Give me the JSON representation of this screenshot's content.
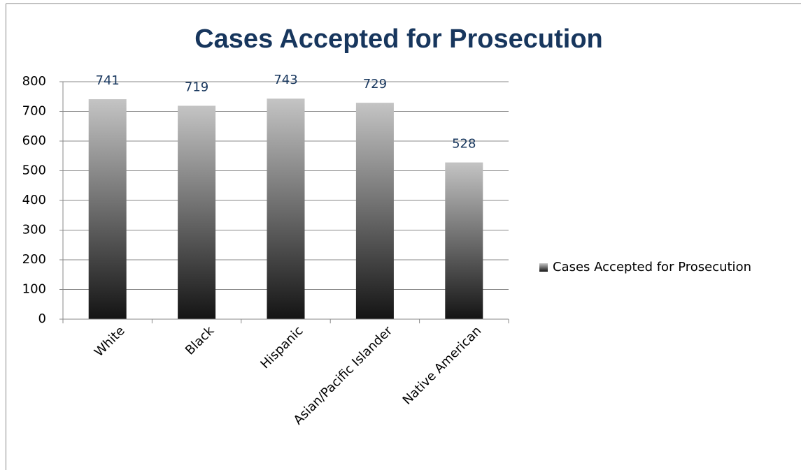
{
  "chart_data": {
    "type": "bar",
    "title": "Cases Accepted for Prosecution",
    "categories": [
      "White",
      "Black",
      "Hispanic",
      "Asian/Pacific Islander",
      "Native American"
    ],
    "series": [
      {
        "name": "Cases Accepted for Prosecution",
        "gradient": [
          "#c4c4c4",
          "#141414"
        ],
        "values": [
          741,
          719,
          743,
          729,
          528
        ]
      }
    ],
    "ylim": [
      0,
      800
    ],
    "yticks": [
      0,
      100,
      200,
      300,
      400,
      500,
      600,
      700,
      800
    ],
    "grid": true,
    "legend": "right"
  }
}
